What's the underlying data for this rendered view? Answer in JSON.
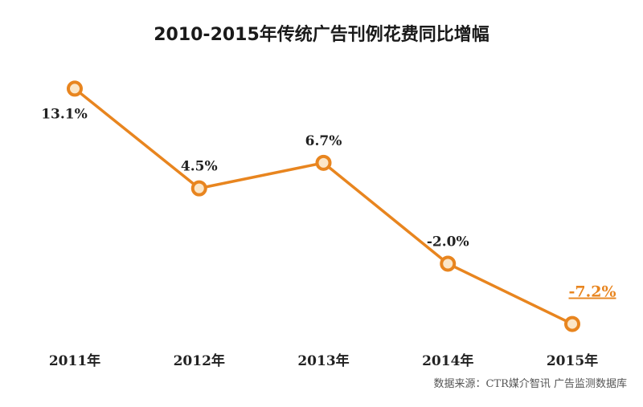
{
  "chart_data": {
    "type": "line",
    "title": "2010-2015年传统广告刊例花费同比增幅",
    "xlabel": "",
    "ylabel": "",
    "categories": [
      "2011年",
      "2012年",
      "2013年",
      "2014年",
      "2015年"
    ],
    "series": [
      {
        "values": [
          13.1,
          4.5,
          6.7,
          -2.0,
          -7.2
        ],
        "labels": [
          "13.1%",
          "4.5%",
          "6.7%",
          "-2.0%",
          "-7.2%"
        ]
      }
    ],
    "ylim": [
      -10,
      15
    ],
    "grid": false,
    "legend": "none",
    "source": "数据来源：CTR媒介智讯  广告监测数据库",
    "colors": {
      "line": "#e8851f",
      "marker_fill": "#fbe6c8",
      "highlight": "#e8851f"
    }
  }
}
